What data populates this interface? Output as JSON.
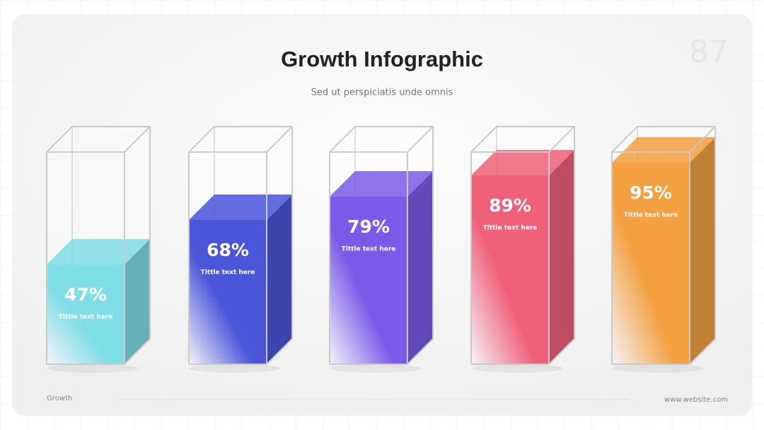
{
  "chart_data": {
    "type": "bar3d",
    "title": "Growth Infographic",
    "subtitle": "Sed ut perspiciatis unde omnis",
    "categories": [
      "Tittle text here",
      "Tittle text here",
      "Tittle text here",
      "Tittle text here",
      "Tittle text here"
    ],
    "values": [
      47,
      68,
      79,
      89,
      95
    ],
    "value_labels": [
      "47%",
      "68%",
      "79%",
      "89%",
      "95%"
    ],
    "colors": [
      "#7fdde6",
      "#4a55d8",
      "#7b5ae8",
      "#f0607a",
      "#f3a040"
    ],
    "ylim": [
      0,
      100
    ]
  },
  "slide": {
    "page_number": "87",
    "footer_left": "Growth",
    "footer_right": "www.website.com"
  }
}
